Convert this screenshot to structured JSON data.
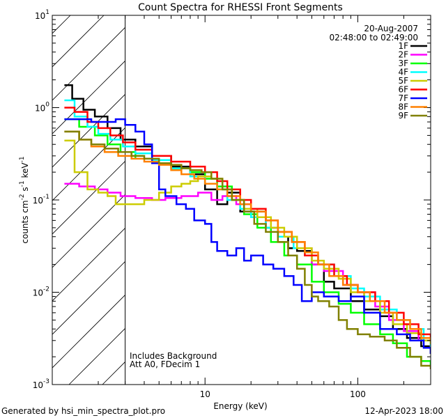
{
  "chart_data": {
    "type": "line",
    "title": "Count Spectra for RHESSI Front Segments",
    "xlabel": "Energy (keV)",
    "ylabel_parts": [
      "counts cm",
      "-2",
      " s",
      "-1",
      " keV",
      "-1"
    ],
    "xscale": "log",
    "yscale": "log",
    "xlim": [
      1,
      300
    ],
    "ylim": [
      0.001,
      10
    ],
    "x_ticks_major": [
      {
        "value": 10,
        "label": "10"
      },
      {
        "value": 100,
        "label": "100"
      }
    ],
    "y_ticks_major": [
      {
        "value": 0.001,
        "base": "10",
        "exp": "-3"
      },
      {
        "value": 0.01,
        "base": "10",
        "exp": "-2"
      },
      {
        "value": 0.1,
        "base": "10",
        "exp": "-1"
      },
      {
        "value": 1,
        "base": "10",
        "exp": "0"
      },
      {
        "value": 10,
        "base": "10",
        "exp": "1"
      }
    ],
    "shaded_region_xmax": 3,
    "date_label": "20-Aug-2007",
    "time_range_label": "02:48:00 to 02:49:00",
    "annotations": [
      "Includes Background",
      "Att A0, FDecim 1"
    ],
    "legend_position": "top-right",
    "series": [
      {
        "name": "1F",
        "color": "#000000",
        "points": [
          [
            1.2,
            1.75
          ],
          [
            1.35,
            1.25
          ],
          [
            1.6,
            0.95
          ],
          [
            1.9,
            0.8
          ],
          [
            2.3,
            0.6
          ],
          [
            2.8,
            0.45
          ],
          [
            3.5,
            0.38
          ],
          [
            4.5,
            0.3
          ],
          [
            6,
            0.23
          ],
          [
            8,
            0.19
          ],
          [
            10,
            0.13
          ],
          [
            12,
            0.09
          ],
          [
            14,
            0.12
          ],
          [
            17,
            0.075
          ],
          [
            20,
            0.075
          ],
          [
            25,
            0.05
          ],
          [
            30,
            0.04
          ],
          [
            35,
            0.03
          ],
          [
            40,
            0.028
          ],
          [
            50,
            0.02
          ],
          [
            60,
            0.013
          ],
          [
            70,
            0.011
          ],
          [
            90,
            0.008
          ],
          [
            110,
            0.0065
          ],
          [
            140,
            0.0055
          ],
          [
            170,
            0.004
          ],
          [
            210,
            0.0032
          ],
          [
            260,
            0.0026
          ],
          [
            300,
            0.0022
          ]
        ]
      },
      {
        "name": "2F",
        "color": "#ff00ff",
        "points": [
          [
            1.2,
            0.15
          ],
          [
            1.5,
            0.14
          ],
          [
            1.9,
            0.13
          ],
          [
            2.3,
            0.12
          ],
          [
            2.8,
            0.11
          ],
          [
            3.5,
            0.105
          ],
          [
            4.5,
            0.1
          ],
          [
            5.5,
            0.105
          ],
          [
            7,
            0.11
          ],
          [
            9,
            0.12
          ],
          [
            11,
            0.1
          ],
          [
            13,
            0.11
          ],
          [
            16,
            0.09
          ],
          [
            20,
            0.065
          ],
          [
            25,
            0.05
          ],
          [
            30,
            0.04
          ],
          [
            40,
            0.03
          ],
          [
            50,
            0.02
          ],
          [
            60,
            0.017
          ],
          [
            80,
            0.012
          ],
          [
            100,
            0.01
          ],
          [
            130,
            0.007
          ],
          [
            160,
            0.005
          ],
          [
            200,
            0.0038
          ],
          [
            250,
            0.003
          ],
          [
            300,
            0.0024
          ]
        ]
      },
      {
        "name": "3F",
        "color": "#00ff00",
        "points": [
          [
            1.2,
            0.75
          ],
          [
            1.5,
            0.62
          ],
          [
            1.9,
            0.5
          ],
          [
            2.3,
            0.4
          ],
          [
            2.8,
            0.33
          ],
          [
            3.5,
            0.28
          ],
          [
            4.5,
            0.25
          ],
          [
            6,
            0.22
          ],
          [
            8,
            0.2
          ],
          [
            10,
            0.17
          ],
          [
            12,
            0.14
          ],
          [
            15,
            0.1
          ],
          [
            18,
            0.07
          ],
          [
            22,
            0.05
          ],
          [
            27,
            0.035
          ],
          [
            33,
            0.025
          ],
          [
            40,
            0.02
          ],
          [
            50,
            0.013
          ],
          [
            60,
            0.01
          ],
          [
            75,
            0.0075
          ],
          [
            90,
            0.006
          ],
          [
            110,
            0.0045
          ],
          [
            140,
            0.0035
          ],
          [
            170,
            0.0028
          ],
          [
            210,
            0.002
          ],
          [
            260,
            0.0018
          ],
          [
            300,
            0.0016
          ]
        ]
      },
      {
        "name": "4F",
        "color": "#00ffff",
        "points": [
          [
            1.2,
            1.2
          ],
          [
            1.4,
            0.8
          ],
          [
            1.7,
            0.62
          ],
          [
            2,
            0.52
          ],
          [
            2.4,
            0.45
          ],
          [
            2.9,
            0.38
          ],
          [
            3.5,
            0.32
          ],
          [
            4.5,
            0.27
          ],
          [
            6,
            0.22
          ],
          [
            8,
            0.18
          ],
          [
            10,
            0.15
          ],
          [
            12,
            0.13
          ],
          [
            14,
            0.1
          ],
          [
            17,
            0.08
          ],
          [
            20,
            0.065
          ],
          [
            25,
            0.05
          ],
          [
            30,
            0.04
          ],
          [
            38,
            0.03
          ],
          [
            45,
            0.025
          ],
          [
            55,
            0.02
          ],
          [
            70,
            0.015
          ],
          [
            90,
            0.011
          ],
          [
            110,
            0.009
          ],
          [
            140,
            0.0065
          ],
          [
            180,
            0.005
          ],
          [
            220,
            0.004
          ],
          [
            270,
            0.003
          ],
          [
            300,
            0.0026
          ]
        ]
      },
      {
        "name": "5F",
        "color": "#cccc00",
        "points": [
          [
            1.2,
            0.44
          ],
          [
            1.4,
            0.2
          ],
          [
            1.7,
            0.13
          ],
          [
            2,
            0.12
          ],
          [
            2.3,
            0.11
          ],
          [
            2.6,
            0.09
          ],
          [
            3,
            0.09
          ],
          [
            4,
            0.1
          ],
          [
            5,
            0.12
          ],
          [
            6,
            0.14
          ],
          [
            7,
            0.15
          ],
          [
            8,
            0.16
          ],
          [
            9,
            0.18
          ],
          [
            11,
            0.17
          ],
          [
            13,
            0.13
          ],
          [
            15,
            0.1
          ],
          [
            18,
            0.08
          ],
          [
            22,
            0.065
          ],
          [
            27,
            0.05
          ],
          [
            33,
            0.04
          ],
          [
            40,
            0.03
          ],
          [
            50,
            0.022
          ],
          [
            60,
            0.018
          ],
          [
            75,
            0.014
          ],
          [
            90,
            0.01
          ],
          [
            110,
            0.008
          ],
          [
            140,
            0.006
          ],
          [
            170,
            0.0045
          ],
          [
            210,
            0.0036
          ],
          [
            260,
            0.003
          ],
          [
            300,
            0.0028
          ]
        ]
      },
      {
        "name": "6F",
        "color": "#ff0000",
        "points": [
          [
            1.2,
            1.0
          ],
          [
            1.4,
            0.9
          ],
          [
            1.7,
            0.7
          ],
          [
            2,
            0.6
          ],
          [
            2.4,
            0.5
          ],
          [
            2.9,
            0.42
          ],
          [
            3.5,
            0.35
          ],
          [
            4.5,
            0.3
          ],
          [
            6,
            0.26
          ],
          [
            8,
            0.23
          ],
          [
            10,
            0.2
          ],
          [
            12,
            0.16
          ],
          [
            14,
            0.13
          ],
          [
            17,
            0.1
          ],
          [
            20,
            0.08
          ],
          [
            25,
            0.06
          ],
          [
            30,
            0.045
          ],
          [
            37,
            0.035
          ],
          [
            45,
            0.025
          ],
          [
            55,
            0.02
          ],
          [
            70,
            0.015
          ],
          [
            85,
            0.012
          ],
          [
            100,
            0.01
          ],
          [
            130,
            0.008
          ],
          [
            160,
            0.006
          ],
          [
            200,
            0.0045
          ],
          [
            250,
            0.0035
          ],
          [
            300,
            0.003
          ]
        ]
      },
      {
        "name": "7F",
        "color": "#0000ff",
        "points": [
          [
            1.2,
            0.75
          ],
          [
            1.5,
            0.75
          ],
          [
            1.8,
            0.7
          ],
          [
            2.2,
            0.7
          ],
          [
            2.6,
            0.75
          ],
          [
            3,
            0.65
          ],
          [
            3.5,
            0.55
          ],
          [
            4,
            0.4
          ],
          [
            4.5,
            0.25
          ],
          [
            5,
            0.13
          ],
          [
            5.5,
            0.11
          ],
          [
            6.5,
            0.09
          ],
          [
            7.5,
            0.08
          ],
          [
            8.5,
            0.06
          ],
          [
            10,
            0.055
          ],
          [
            11,
            0.035
          ],
          [
            12,
            0.028
          ],
          [
            14,
            0.025
          ],
          [
            16,
            0.03
          ],
          [
            18,
            0.022
          ],
          [
            20,
            0.025
          ],
          [
            24,
            0.02
          ],
          [
            28,
            0.018
          ],
          [
            33,
            0.015
          ],
          [
            38,
            0.012
          ],
          [
            43,
            0.008
          ],
          [
            50,
            0.01
          ],
          [
            60,
            0.009
          ],
          [
            75,
            0.008
          ],
          [
            90,
            0.009
          ],
          [
            110,
            0.006
          ],
          [
            140,
            0.004
          ],
          [
            180,
            0.0035
          ],
          [
            220,
            0.003
          ],
          [
            270,
            0.0025
          ],
          [
            300,
            0.0022
          ]
        ]
      },
      {
        "name": "8F",
        "color": "#ff8000",
        "points": [
          [
            1.2,
            0.55
          ],
          [
            1.5,
            0.45
          ],
          [
            1.8,
            0.38
          ],
          [
            2.2,
            0.33
          ],
          [
            2.7,
            0.3
          ],
          [
            3.3,
            0.28
          ],
          [
            4,
            0.26
          ],
          [
            5,
            0.24
          ],
          [
            6,
            0.21
          ],
          [
            7,
            0.19
          ],
          [
            8.5,
            0.17
          ],
          [
            10,
            0.15
          ],
          [
            12,
            0.13
          ],
          [
            14,
            0.11
          ],
          [
            17,
            0.09
          ],
          [
            20,
            0.075
          ],
          [
            25,
            0.06
          ],
          [
            30,
            0.045
          ],
          [
            37,
            0.035
          ],
          [
            45,
            0.027
          ],
          [
            55,
            0.02
          ],
          [
            65,
            0.015
          ],
          [
            80,
            0.012
          ],
          [
            100,
            0.01
          ],
          [
            120,
            0.008
          ],
          [
            150,
            0.006
          ],
          [
            180,
            0.005
          ],
          [
            220,
            0.004
          ],
          [
            260,
            0.0032
          ],
          [
            300,
            0.003
          ]
        ]
      },
      {
        "name": "9F",
        "color": "#808000",
        "points": [
          [
            1.2,
            0.55
          ],
          [
            1.5,
            0.45
          ],
          [
            1.8,
            0.4
          ],
          [
            2.2,
            0.36
          ],
          [
            2.7,
            0.33
          ],
          [
            3.3,
            0.3
          ],
          [
            4,
            0.28
          ],
          [
            5,
            0.25
          ],
          [
            6,
            0.24
          ],
          [
            7,
            0.22
          ],
          [
            8,
            0.21
          ],
          [
            9.5,
            0.2
          ],
          [
            11,
            0.17
          ],
          [
            13,
            0.13
          ],
          [
            15,
            0.1
          ],
          [
            18,
            0.075
          ],
          [
            21,
            0.055
          ],
          [
            25,
            0.045
          ],
          [
            30,
            0.035
          ],
          [
            35,
            0.025
          ],
          [
            40,
            0.018
          ],
          [
            45,
            0.012
          ],
          [
            50,
            0.009
          ],
          [
            55,
            0.008
          ],
          [
            65,
            0.007
          ],
          [
            75,
            0.005
          ],
          [
            85,
            0.004
          ],
          [
            100,
            0.0035
          ],
          [
            120,
            0.0033
          ],
          [
            150,
            0.003
          ],
          [
            180,
            0.0025
          ],
          [
            220,
            0.002
          ],
          [
            260,
            0.0016
          ],
          [
            300,
            0.0015
          ]
        ]
      }
    ]
  },
  "footer": {
    "generated_by": "Generated by hsi_min_spectra_plot.pro",
    "date": "12-Apr-2023 18:00"
  }
}
